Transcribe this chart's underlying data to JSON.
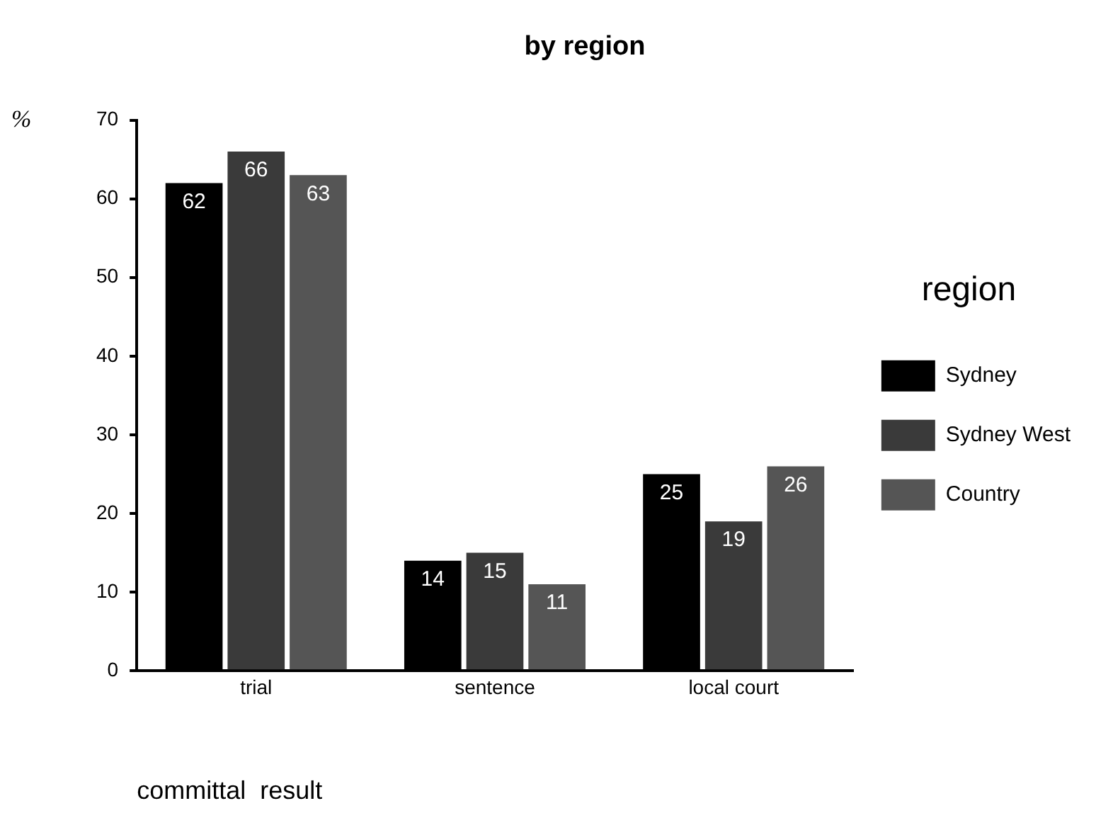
{
  "chart_data": {
    "type": "bar",
    "title": "by region",
    "xlabel": "committal  result",
    "ylabel": "%",
    "legend_title": "region",
    "categories": [
      "trial",
      "sentence",
      "local court"
    ],
    "series": [
      {
        "name": "Sydney",
        "color": "#000000",
        "values": [
          62,
          14,
          25
        ]
      },
      {
        "name": "Sydney West",
        "color": "#3a3a3a",
        "values": [
          66,
          15,
          19
        ]
      },
      {
        "name": "Country",
        "color": "#555555",
        "values": [
          63,
          11,
          26
        ]
      }
    ],
    "ylim": [
      0,
      70
    ],
    "yticks": [
      0,
      10,
      20,
      30,
      40,
      50,
      60,
      70
    ],
    "grid": false,
    "legend": "right",
    "data_labels": true
  }
}
